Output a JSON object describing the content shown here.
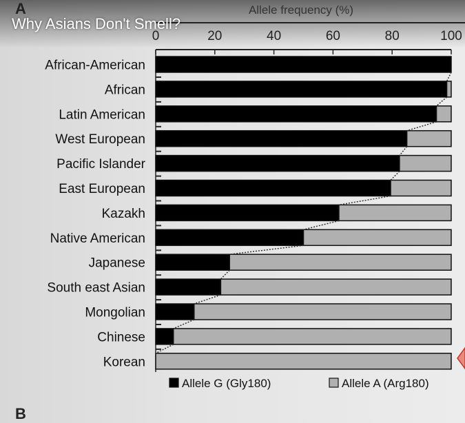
{
  "video": {
    "title": "Why Asians Don't Smell?"
  },
  "panel_labels": [
    "A",
    "B"
  ],
  "chart_data": {
    "type": "bar",
    "stacked": true,
    "orientation": "horizontal",
    "title": "",
    "xlabel": "Allele frequency (%)",
    "ylabel": "",
    "xlim": [
      0,
      100
    ],
    "xticks": [
      "0",
      "20",
      "40",
      "60",
      "80",
      "100"
    ],
    "xaxis_position": "top",
    "grid": false,
    "legend_position": "bottom",
    "categories": [
      "African-American",
      "African",
      "Latin American",
      "West European",
      "Pacific Islander",
      "East European",
      "Kazakh",
      "Native American",
      "Japanese",
      "South east Asian",
      "Mongolian",
      "Chinese",
      "Korean"
    ],
    "series": [
      {
        "name": "Allele G (Gly180)",
        "color": "#000000",
        "values": [
          100,
          98.5,
          95,
          85,
          82.5,
          79.5,
          62,
          50,
          25,
          22,
          13,
          6,
          0
        ]
      },
      {
        "name": "Allele A (Arg180)",
        "color": "#b0b0b0",
        "values": [
          0,
          1.5,
          5,
          15,
          17.5,
          20.5,
          38,
          50,
          75,
          78,
          87,
          94,
          100
        ]
      }
    ]
  }
}
